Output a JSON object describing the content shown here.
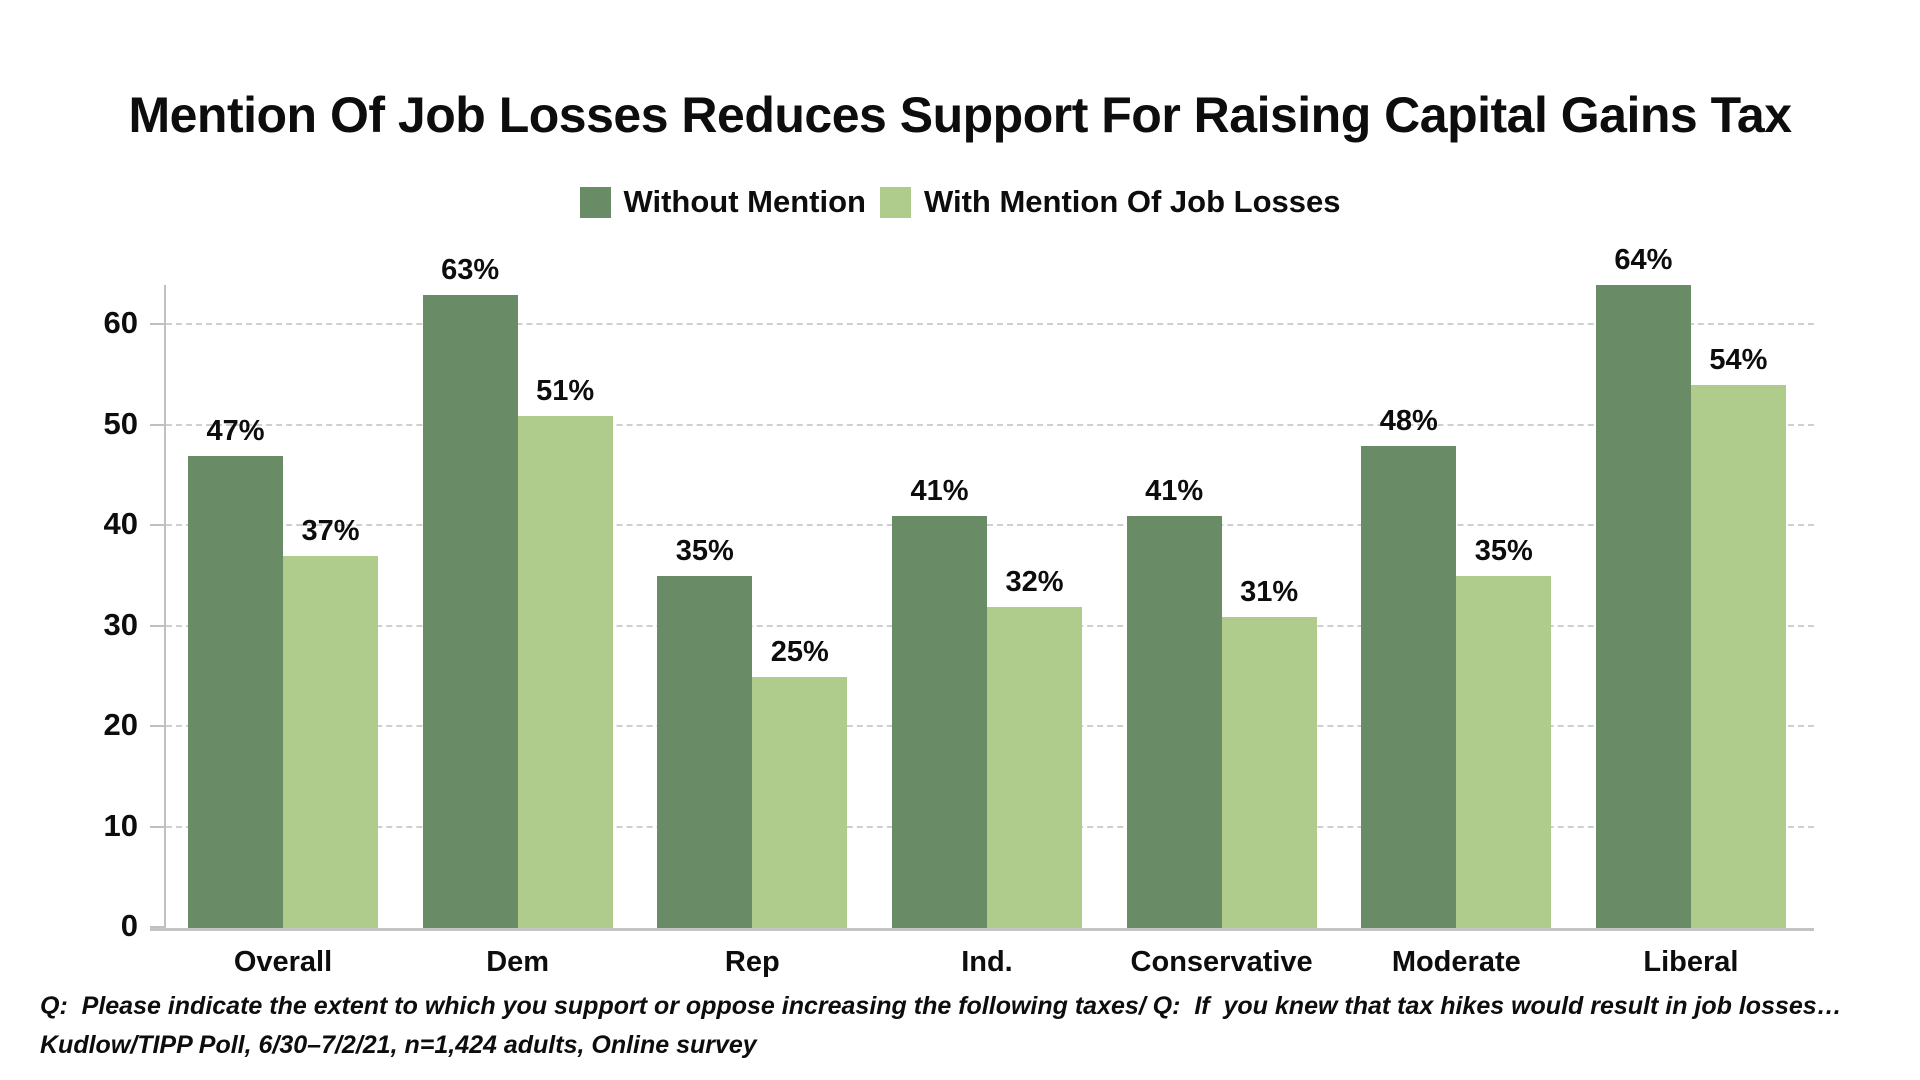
{
  "title": "Mention Of Job Losses Reduces Support For Raising Capital Gains Tax",
  "legend": [
    {
      "label": "Without Mention",
      "color": "#698b66"
    },
    {
      "label": "With Mention Of Job Losses",
      "color": "#b0cc8c"
    }
  ],
  "chart_data": {
    "type": "bar",
    "title": "Mention Of Job Losses Reduces Support For Raising Capital Gains Tax",
    "categories": [
      "Overall",
      "Dem",
      "Rep",
      "Ind.",
      "Conservative",
      "Moderate",
      "Liberal"
    ],
    "series": [
      {
        "name": "Without Mention",
        "color": "#698b66",
        "values": [
          47,
          63,
          35,
          41,
          41,
          48,
          64
        ]
      },
      {
        "name": "With Mention Of Job Losses",
        "color": "#b0cc8c",
        "values": [
          37,
          51,
          25,
          32,
          31,
          35,
          54
        ]
      }
    ],
    "value_suffix": "%",
    "xlabel": "",
    "ylabel": "",
    "y_ticks": [
      0,
      10,
      20,
      30,
      40,
      50,
      60
    ],
    "ylim": [
      0,
      64
    ],
    "grid": "horizontal-dashed",
    "legend_position": "top"
  },
  "footnotes": {
    "line1": "Q:  Please indicate the extent to which you support or oppose increasing the following taxes/ Q:  If  you knew that tax hikes would result in job losses…",
    "line2": "Kudlow/TIPP Poll, 6/30–7/2/21, n=1,424 adults, Online survey"
  }
}
